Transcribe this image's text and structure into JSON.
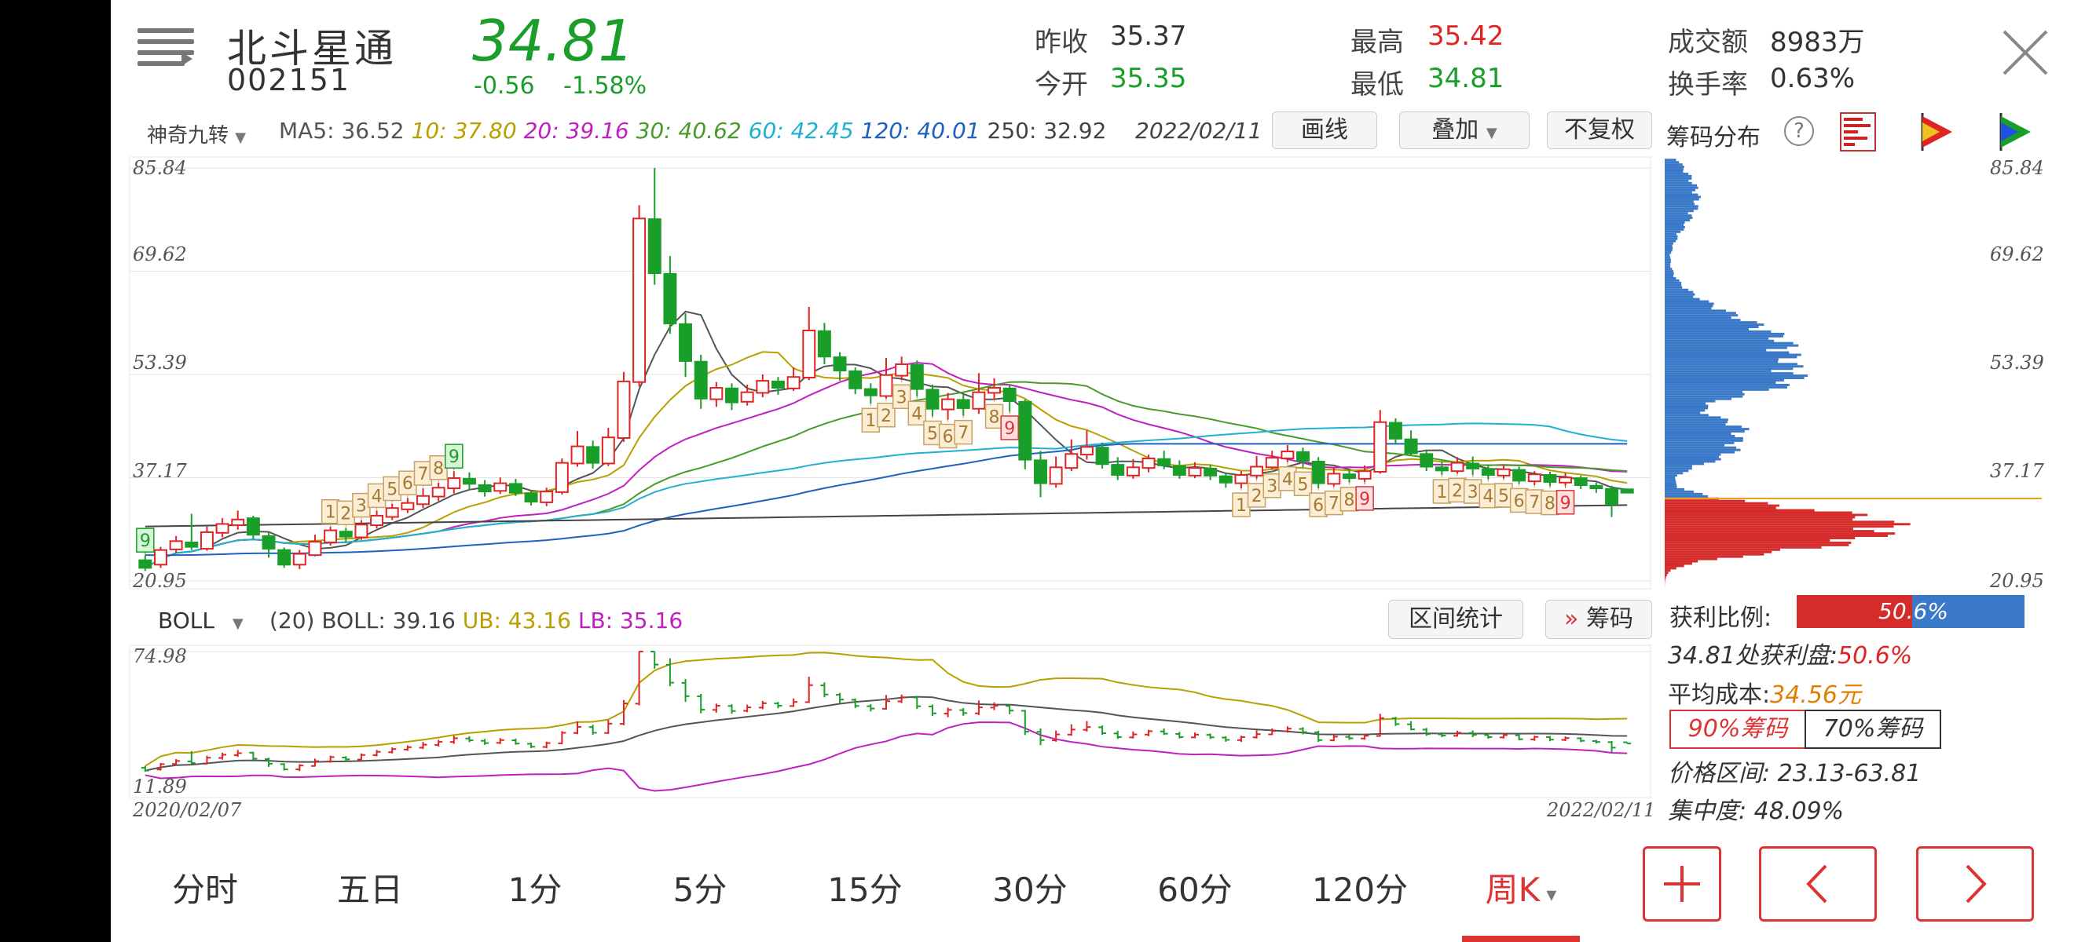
{
  "stock": {
    "name": "北斗星通",
    "code": "002151",
    "price": "34.81",
    "change": "-0.56",
    "change_pct": "-1.58%"
  },
  "quote": {
    "prev_close_label": "昨收",
    "prev_close": "35.37",
    "open_label": "今开",
    "open": "35.35",
    "high_label": "最高",
    "high": "35.42",
    "low_label": "最低",
    "low": "34.81",
    "amount_label": "成交额",
    "amount": "8983万",
    "turnover_label": "换手率",
    "turnover": "0.63%"
  },
  "indicator": {
    "selector": "神奇九转",
    "ma5": "MA5: 36.52",
    "ma10": "10: 37.80",
    "ma20": "20: 39.16",
    "ma30": "30: 40.62",
    "ma60": "60: 42.45",
    "ma120": "120: 40.01",
    "ma250": "250: 32.92",
    "date": "2022/02/11"
  },
  "toolbar": {
    "draw": "画线",
    "overlay": "叠加",
    "adjust": "不复权"
  },
  "chip_panel": {
    "title": "筹码分布",
    "help": "?",
    "profit_label": "获利比例:",
    "profit_value": "50.6%",
    "profit_fraction": 0.506,
    "at_price_label": "34.81处获利盘:",
    "at_price_value": "50.6%",
    "avg_cost_label": "平均成本:",
    "avg_cost_value": "34.56元",
    "tab_90": "90%筹码",
    "tab_70": "70%筹码",
    "range_label": "价格区间:",
    "range_value": "23.13-63.81",
    "concentration_label": "集中度:",
    "concentration_value": "48.09%"
  },
  "main_axis": {
    "ticks": [
      "85.84",
      "69.62",
      "53.39",
      "37.17",
      "20.95"
    ]
  },
  "boll": {
    "selector": "BOLL",
    "params": "(20) BOLL: 39.16",
    "ub": "UB: 43.16",
    "lb": "LB: 35.16",
    "axis_top": "74.98",
    "axis_bottom": "11.89",
    "range_stats": "区间统计",
    "chips_btn": "筹码",
    "chips_arrow": "»"
  },
  "dates": {
    "start": "2020/02/07",
    "end": "2022/02/11"
  },
  "tabs": [
    "分时",
    "五日",
    "1分",
    "5分",
    "15分",
    "30分",
    "60分",
    "120分",
    "周K"
  ],
  "active_tab": "周K",
  "colors": {
    "up": "#e02424",
    "down": "#1a9e2a",
    "ma5": "#555555",
    "ma10": "#b8a000",
    "ma20": "#c020c0",
    "ma30": "#4a9a2a",
    "ma60": "#20b0d0",
    "ma120": "#2060c0",
    "ma250": "#444444",
    "chip_profit": "#d62b2b",
    "chip_loss": "#3a78c8"
  },
  "candle_series": [
    [
      "2020-02",
      24.2,
      23.0,
      25.0,
      22.5
    ],
    [
      "2020-02",
      23.5,
      25.8,
      26.3,
      23.0
    ],
    [
      "2020-02",
      25.9,
      27.2,
      28.0,
      25.3
    ],
    [
      "2020-03",
      27.0,
      26.3,
      31.5,
      25.8
    ],
    [
      "2020-03",
      26.0,
      28.6,
      29.5,
      25.7
    ],
    [
      "2020-03",
      28.5,
      29.9,
      30.8,
      27.8
    ],
    [
      "2020-03",
      29.7,
      30.6,
      32.0,
      29.0
    ],
    [
      "2020-04",
      30.8,
      28.2,
      31.2,
      27.5
    ],
    [
      "2020-04",
      28.0,
      26.0,
      28.6,
      24.6
    ],
    [
      "2020-04",
      25.8,
      23.5,
      26.2,
      23.0
    ],
    [
      "2020-04",
      23.5,
      25.2,
      25.8,
      22.8
    ],
    [
      "2020-05",
      25.0,
      27.1,
      28.2,
      24.8
    ],
    [
      "2020-05",
      27.0,
      28.9,
      29.5,
      26.5
    ],
    [
      "2020-05",
      28.7,
      27.9,
      29.3,
      27.0
    ],
    [
      "2020-05",
      27.8,
      29.8,
      30.5,
      27.4
    ],
    [
      "2020-06",
      29.7,
      31.2,
      32.0,
      29.2
    ],
    [
      "2020-06",
      31.0,
      32.4,
      33.1,
      30.5
    ],
    [
      "2020-06",
      32.2,
      33.2,
      34.0,
      31.6
    ],
    [
      "2020-06",
      33.0,
      34.3,
      35.5,
      32.4
    ],
    [
      "2020-07",
      34.2,
      35.6,
      36.4,
      33.5
    ],
    [
      "2020-07",
      35.5,
      37.1,
      38.2,
      34.7
    ],
    [
      "2020-07",
      37.0,
      36.2,
      38.0,
      35.4
    ],
    [
      "2020-07",
      36.0,
      35.0,
      36.8,
      34.2
    ],
    [
      "2020-08",
      35.1,
      36.3,
      37.2,
      34.6
    ],
    [
      "2020-08",
      36.2,
      34.8,
      37.0,
      34.3
    ],
    [
      "2020-08",
      34.7,
      33.4,
      35.2,
      32.8
    ],
    [
      "2020-08",
      33.3,
      35.0,
      35.6,
      32.7
    ],
    [
      "2020-09",
      34.9,
      39.5,
      40.2,
      34.5
    ],
    [
      "2020-09",
      39.4,
      42.1,
      44.5,
      38.9
    ],
    [
      "2020-09",
      42.0,
      39.5,
      43.0,
      38.6
    ],
    [
      "2020-09",
      39.4,
      43.5,
      45.0,
      39.0
    ],
    [
      "2020-10",
      43.4,
      52.3,
      53.8,
      42.8
    ],
    [
      "2020-10",
      52.2,
      77.9,
      80.0,
      51.5
    ],
    [
      "2020-10",
      77.8,
      69.3,
      85.84,
      67.5
    ],
    [
      "2020-10",
      69.2,
      61.4,
      72.0,
      59.8
    ],
    [
      "2020-11",
      61.3,
      55.5,
      63.0,
      53.0
    ],
    [
      "2020-11",
      55.4,
      49.6,
      56.5,
      48.0
    ],
    [
      "2020-11",
      49.5,
      51.3,
      52.2,
      48.3
    ],
    [
      "2020-11",
      51.2,
      49.0,
      52.0,
      47.8
    ],
    [
      "2020-12",
      49.1,
      50.6,
      51.8,
      48.5
    ],
    [
      "2020-12",
      50.5,
      52.4,
      53.4,
      49.8
    ],
    [
      "2020-12",
      52.3,
      51.3,
      53.0,
      50.2
    ],
    [
      "2020-12",
      51.2,
      53.0,
      54.5,
      50.8
    ],
    [
      "2021-01",
      52.9,
      60.3,
      64.0,
      52.5
    ],
    [
      "2021-01",
      60.2,
      56.2,
      61.5,
      55.0
    ],
    [
      "2021-01",
      56.1,
      54.0,
      56.9,
      52.4
    ],
    [
      "2021-01",
      53.9,
      51.2,
      54.5,
      50.3
    ],
    [
      "2021-02",
      51.1,
      50.1,
      52.0,
      48.8
    ],
    [
      "2021-02",
      50.0,
      53.3,
      56.0,
      49.6
    ],
    [
      "2021-02",
      53.2,
      55.0,
      56.2,
      52.5
    ],
    [
      "2021-02",
      54.9,
      51.1,
      55.6,
      49.9
    ],
    [
      "2021-03",
      51.0,
      48.0,
      51.8,
      46.8
    ],
    [
      "2021-03",
      47.9,
      49.5,
      50.5,
      46.3
    ],
    [
      "2021-03",
      49.4,
      48.1,
      50.3,
      46.9
    ],
    [
      "2021-03",
      48.0,
      50.6,
      53.6,
      47.2
    ],
    [
      "2021-04",
      50.5,
      51.3,
      52.8,
      49.4
    ],
    [
      "2021-04",
      51.2,
      49.2,
      51.8,
      47.6
    ],
    [
      "2021-04",
      49.1,
      40.0,
      49.5,
      38.5
    ],
    [
      "2021-04",
      39.9,
      36.3,
      41.4,
      34.1
    ],
    [
      "2021-05",
      36.2,
      38.8,
      40.5,
      35.6
    ],
    [
      "2021-05",
      38.7,
      40.9,
      43.2,
      38.2
    ],
    [
      "2021-05",
      40.8,
      42.0,
      44.6,
      40.0
    ],
    [
      "2021-05",
      41.9,
      39.3,
      42.7,
      38.6
    ],
    [
      "2021-06",
      39.2,
      37.6,
      40.4,
      36.8
    ],
    [
      "2021-06",
      37.5,
      38.8,
      40.1,
      37.0
    ],
    [
      "2021-06",
      38.7,
      40.2,
      40.8,
      38.0
    ],
    [
      "2021-06",
      40.1,
      39.1,
      41.4,
      38.5
    ],
    [
      "2021-07",
      39.0,
      37.6,
      39.9,
      37.0
    ],
    [
      "2021-07",
      37.5,
      38.7,
      39.6,
      37.1
    ],
    [
      "2021-07",
      38.6,
      37.5,
      39.2,
      36.8
    ],
    [
      "2021-07",
      37.4,
      36.4,
      38.0,
      35.6
    ],
    [
      "2021-08",
      36.3,
      37.6,
      38.2,
      35.5
    ],
    [
      "2021-08",
      37.5,
      38.9,
      40.6,
      37.0
    ],
    [
      "2021-08",
      38.8,
      40.3,
      41.4,
      38.5
    ],
    [
      "2021-08",
      40.2,
      41.3,
      42.3,
      39.6
    ],
    [
      "2021-09",
      41.2,
      39.8,
      41.9,
      38.8
    ],
    [
      "2021-09",
      39.7,
      36.3,
      40.4,
      35.5
    ],
    [
      "2021-09",
      36.2,
      37.8,
      38.7,
      35.8
    ],
    [
      "2021-09",
      37.7,
      37.1,
      38.5,
      36.4
    ],
    [
      "2021-10",
      37.0,
      38.2,
      39.1,
      36.5
    ],
    [
      "2021-10",
      38.1,
      45.9,
      47.8,
      37.8
    ],
    [
      "2021-10",
      45.8,
      43.3,
      46.5,
      42.5
    ],
    [
      "2021-10",
      43.2,
      41.0,
      44.6,
      40.6
    ],
    [
      "2021-11",
      40.9,
      38.9,
      41.6,
      38.2
    ],
    [
      "2021-11",
      38.8,
      38.3,
      39.7,
      37.6
    ],
    [
      "2021-11",
      38.2,
      39.5,
      40.4,
      37.8
    ],
    [
      "2021-11",
      39.4,
      38.6,
      40.5,
      37.6
    ],
    [
      "2021-12",
      38.5,
      37.6,
      39.2,
      36.9
    ],
    [
      "2021-12",
      37.5,
      38.5,
      39.1,
      37.0
    ],
    [
      "2021-12",
      38.4,
      36.7,
      38.9,
      36.2
    ],
    [
      "2021-12",
      36.6,
      37.7,
      38.2,
      36.0
    ],
    [
      "2022-01",
      37.6,
      36.5,
      38.1,
      35.8
    ],
    [
      "2022-01",
      36.4,
      37.2,
      37.9,
      35.9
    ],
    [
      "2022-01",
      37.1,
      36.0,
      37.5,
      35.4
    ],
    [
      "2022-01",
      35.9,
      35.5,
      36.4,
      34.8
    ],
    [
      "2022-02",
      35.4,
      33.0,
      35.9,
      31.0
    ],
    [
      "2022-02",
      35.35,
      34.81,
      35.42,
      34.81
    ]
  ]
}
